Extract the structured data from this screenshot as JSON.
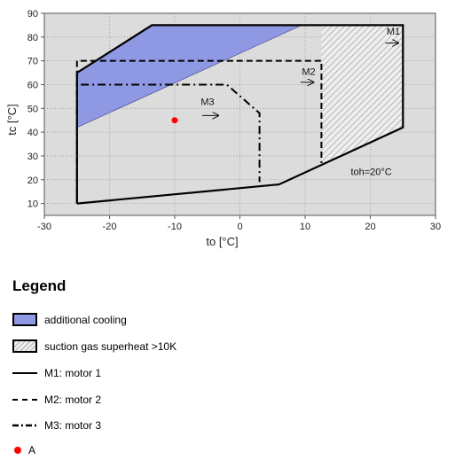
{
  "chart_data": {
    "type": "line",
    "xlabel": "to [°C]",
    "ylabel": "tc [°C]",
    "xlim": [
      -30,
      30
    ],
    "ylim": [
      5,
      90
    ],
    "xticks": [
      -30,
      -20,
      -10,
      0,
      10,
      20,
      30
    ],
    "yticks": [
      10,
      20,
      30,
      40,
      50,
      60,
      70,
      80,
      90
    ],
    "grid": true,
    "series": [
      {
        "name": "M1: motor 1",
        "style": "solid",
        "points": [
          [
            -25,
            10
          ],
          [
            6,
            18
          ],
          [
            25,
            42
          ],
          [
            25,
            85
          ],
          [
            -13.5,
            85
          ],
          [
            -25,
            65
          ],
          [
            -25,
            10
          ]
        ]
      },
      {
        "name": "M2: motor 2",
        "style": "dashed",
        "points": [
          [
            -25,
            10
          ],
          [
            -25,
            70
          ],
          [
            12.5,
            70
          ],
          [
            12.5,
            27
          ]
        ]
      },
      {
        "name": "M3: motor 3",
        "style": "dashdot",
        "points": [
          [
            -25,
            12
          ],
          [
            -25,
            60
          ],
          [
            -2,
            60
          ],
          [
            3,
            48
          ],
          [
            3,
            19
          ]
        ]
      }
    ],
    "regions": [
      {
        "name": "additional cooling",
        "fill": "#8f98e2",
        "points": [
          [
            -25,
            42
          ],
          [
            -25,
            65
          ],
          [
            -13.5,
            85
          ],
          [
            9.5,
            85
          ]
        ]
      },
      {
        "name": "suction gas superheat >10K",
        "fill": "hatch",
        "points": [
          [
            12.5,
            27
          ],
          [
            25,
            42
          ],
          [
            25,
            85
          ],
          [
            12.5,
            85
          ]
        ]
      }
    ],
    "markers": [
      {
        "name": "A",
        "x": -10,
        "y": 45,
        "color": "#ff0000"
      }
    ],
    "annotations": [
      {
        "text": "M1",
        "x": 22.5,
        "y": 81
      },
      {
        "text": "M2",
        "x": 9.5,
        "y": 64
      },
      {
        "text": "M3",
        "x": -6,
        "y": 51.5
      },
      {
        "text": "toh=20°C",
        "x": 17,
        "y": 22
      }
    ],
    "arrows": [
      {
        "x1": 22.3,
        "x2": 24.3,
        "y": 77.5
      },
      {
        "x1": 9.3,
        "x2": 11.3,
        "y": 61
      },
      {
        "x1": -5.8,
        "x2": -3.3,
        "y": 47
      }
    ]
  },
  "legend": {
    "title": "Legend",
    "items": [
      {
        "label": "additional cooling"
      },
      {
        "label": "suction gas superheat >10K"
      },
      {
        "label": "M1: motor 1"
      },
      {
        "label": "M2: motor 2"
      },
      {
        "label": "M3: motor 3"
      },
      {
        "label": "A"
      }
    ]
  }
}
